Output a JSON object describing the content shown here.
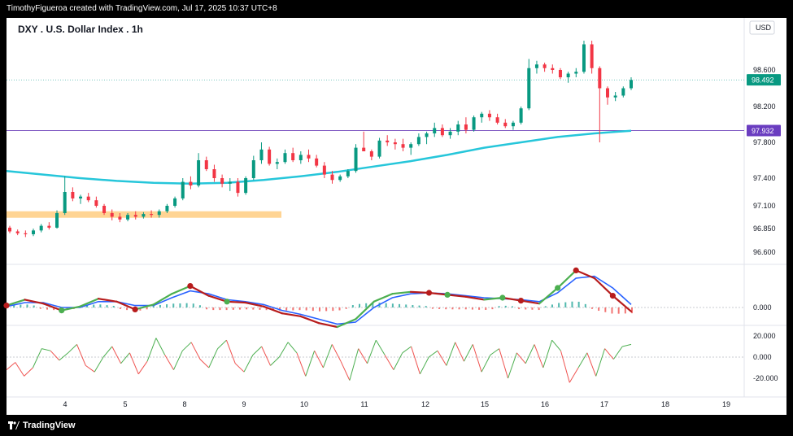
{
  "header": {
    "credit": "TimothyFigueroa created with TradingView.com, Jul 17, 2025 10:37 UTC+8"
  },
  "footer": {
    "brand": "TradingView"
  },
  "chart_data": {
    "type": "candlestick",
    "title": "DXY . U.S. Dollar Index . 1h",
    "currency": "USD",
    "price_axis_ticks": [
      "98.600",
      "98.200",
      "97.800",
      "97.400",
      "97.100",
      "96.850",
      "96.600"
    ],
    "price_axis_values": [
      98.6,
      98.2,
      97.8,
      97.4,
      97.1,
      96.85,
      96.6
    ],
    "last_price_label": "98.492",
    "last_price": 98.492,
    "horizontal_line_label": "97.932",
    "horizontal_line_value": 97.932,
    "support_zone": {
      "from": 96.97,
      "to": 97.04
    },
    "x_tick_labels": [
      "4",
      "5",
      "8",
      "9",
      "10",
      "11",
      "12",
      "15",
      "16",
      "17",
      "18",
      "19"
    ],
    "candles": [
      {
        "o": 96.86,
        "h": 96.88,
        "l": 96.8,
        "c": 96.82
      },
      {
        "o": 96.82,
        "h": 96.84,
        "l": 96.78,
        "c": 96.8
      },
      {
        "o": 96.8,
        "h": 96.83,
        "l": 96.76,
        "c": 96.79
      },
      {
        "o": 96.79,
        "h": 96.85,
        "l": 96.77,
        "c": 96.83
      },
      {
        "o": 96.83,
        "h": 96.9,
        "l": 96.81,
        "c": 96.88
      },
      {
        "o": 96.88,
        "h": 96.92,
        "l": 96.84,
        "c": 96.86
      },
      {
        "o": 96.86,
        "h": 97.05,
        "l": 96.85,
        "c": 97.02
      },
      {
        "o": 97.02,
        "h": 97.42,
        "l": 97.0,
        "c": 97.25
      },
      {
        "o": 97.25,
        "h": 97.3,
        "l": 97.15,
        "c": 97.18
      },
      {
        "o": 97.18,
        "h": 97.22,
        "l": 97.12,
        "c": 97.2
      },
      {
        "o": 97.2,
        "h": 97.24,
        "l": 97.14,
        "c": 97.16
      },
      {
        "o": 97.16,
        "h": 97.2,
        "l": 97.08,
        "c": 97.1
      },
      {
        "o": 97.1,
        "h": 97.12,
        "l": 97.0,
        "c": 97.02
      },
      {
        "o": 97.02,
        "h": 97.06,
        "l": 96.94,
        "c": 96.98
      },
      {
        "o": 96.98,
        "h": 97.02,
        "l": 96.92,
        "c": 96.95
      },
      {
        "o": 96.95,
        "h": 97.02,
        "l": 96.93,
        "c": 97.0
      },
      {
        "o": 97.0,
        "h": 97.04,
        "l": 96.95,
        "c": 96.98
      },
      {
        "o": 96.98,
        "h": 97.03,
        "l": 96.96,
        "c": 97.01
      },
      {
        "o": 97.01,
        "h": 97.05,
        "l": 96.97,
        "c": 97.0
      },
      {
        "o": 97.0,
        "h": 97.06,
        "l": 96.97,
        "c": 97.04
      },
      {
        "o": 97.04,
        "h": 97.12,
        "l": 97.02,
        "c": 97.1
      },
      {
        "o": 97.1,
        "h": 97.2,
        "l": 97.08,
        "c": 97.18
      },
      {
        "o": 97.18,
        "h": 97.4,
        "l": 97.16,
        "c": 97.36
      },
      {
        "o": 97.36,
        "h": 97.42,
        "l": 97.28,
        "c": 97.32
      },
      {
        "o": 97.32,
        "h": 97.68,
        "l": 97.3,
        "c": 97.6
      },
      {
        "o": 97.6,
        "h": 97.64,
        "l": 97.48,
        "c": 97.5
      },
      {
        "o": 97.5,
        "h": 97.55,
        "l": 97.36,
        "c": 97.4
      },
      {
        "o": 97.4,
        "h": 97.44,
        "l": 97.3,
        "c": 97.34
      },
      {
        "o": 97.34,
        "h": 97.4,
        "l": 97.26,
        "c": 97.36
      },
      {
        "o": 97.36,
        "h": 97.4,
        "l": 97.2,
        "c": 97.24
      },
      {
        "o": 97.24,
        "h": 97.42,
        "l": 97.22,
        "c": 97.4
      },
      {
        "o": 97.4,
        "h": 97.65,
        "l": 97.38,
        "c": 97.6
      },
      {
        "o": 97.6,
        "h": 97.8,
        "l": 97.56,
        "c": 97.72
      },
      {
        "o": 97.72,
        "h": 97.75,
        "l": 97.54,
        "c": 97.56
      },
      {
        "o": 97.56,
        "h": 97.62,
        "l": 97.5,
        "c": 97.58
      },
      {
        "o": 97.58,
        "h": 97.72,
        "l": 97.56,
        "c": 97.68
      },
      {
        "o": 97.68,
        "h": 97.74,
        "l": 97.58,
        "c": 97.6
      },
      {
        "o": 97.6,
        "h": 97.7,
        "l": 97.56,
        "c": 97.66
      },
      {
        "o": 97.66,
        "h": 97.72,
        "l": 97.58,
        "c": 97.62
      },
      {
        "o": 97.62,
        "h": 97.66,
        "l": 97.52,
        "c": 97.54
      },
      {
        "o": 97.54,
        "h": 97.58,
        "l": 97.4,
        "c": 97.44
      },
      {
        "o": 97.44,
        "h": 97.48,
        "l": 97.34,
        "c": 97.38
      },
      {
        "o": 97.38,
        "h": 97.44,
        "l": 97.36,
        "c": 97.42
      },
      {
        "o": 97.42,
        "h": 97.5,
        "l": 97.4,
        "c": 97.48
      },
      {
        "o": 97.48,
        "h": 97.78,
        "l": 97.46,
        "c": 97.74
      },
      {
        "o": 97.74,
        "h": 97.92,
        "l": 97.7,
        "c": 97.7
      },
      {
        "o": 97.7,
        "h": 97.72,
        "l": 97.6,
        "c": 97.64
      },
      {
        "o": 97.64,
        "h": 97.85,
        "l": 97.62,
        "c": 97.82
      },
      {
        "o": 97.82,
        "h": 97.88,
        "l": 97.76,
        "c": 97.8
      },
      {
        "o": 97.8,
        "h": 97.84,
        "l": 97.72,
        "c": 97.78
      },
      {
        "o": 97.78,
        "h": 97.84,
        "l": 97.7,
        "c": 97.74
      },
      {
        "o": 97.74,
        "h": 97.8,
        "l": 97.66,
        "c": 97.78
      },
      {
        "o": 97.78,
        "h": 97.9,
        "l": 97.76,
        "c": 97.86
      },
      {
        "o": 97.86,
        "h": 97.92,
        "l": 97.78,
        "c": 97.9
      },
      {
        "o": 97.9,
        "h": 98.02,
        "l": 97.86,
        "c": 97.96
      },
      {
        "o": 97.96,
        "h": 98.0,
        "l": 97.86,
        "c": 97.88
      },
      {
        "o": 97.88,
        "h": 97.96,
        "l": 97.84,
        "c": 97.92
      },
      {
        "o": 97.92,
        "h": 98.04,
        "l": 97.88,
        "c": 98.0
      },
      {
        "o": 98.0,
        "h": 98.08,
        "l": 97.9,
        "c": 97.94
      },
      {
        "o": 97.94,
        "h": 98.1,
        "l": 97.92,
        "c": 98.08
      },
      {
        "o": 98.08,
        "h": 98.14,
        "l": 98.02,
        "c": 98.12
      },
      {
        "o": 98.12,
        "h": 98.16,
        "l": 98.04,
        "c": 98.08
      },
      {
        "o": 98.08,
        "h": 98.12,
        "l": 98.0,
        "c": 98.02
      },
      {
        "o": 98.02,
        "h": 98.06,
        "l": 97.96,
        "c": 97.98
      },
      {
        "o": 97.98,
        "h": 98.04,
        "l": 97.94,
        "c": 98.02
      },
      {
        "o": 98.02,
        "h": 98.2,
        "l": 98.0,
        "c": 98.18
      },
      {
        "o": 98.18,
        "h": 98.72,
        "l": 98.16,
        "c": 98.62
      },
      {
        "o": 98.62,
        "h": 98.7,
        "l": 98.56,
        "c": 98.66
      },
      {
        "o": 98.66,
        "h": 98.68,
        "l": 98.58,
        "c": 98.62
      },
      {
        "o": 98.62,
        "h": 98.66,
        "l": 98.56,
        "c": 98.6
      },
      {
        "o": 98.6,
        "h": 98.62,
        "l": 98.5,
        "c": 98.52
      },
      {
        "o": 98.52,
        "h": 98.58,
        "l": 98.46,
        "c": 98.56
      },
      {
        "o": 98.56,
        "h": 98.62,
        "l": 98.52,
        "c": 98.58
      },
      {
        "o": 98.58,
        "h": 98.92,
        "l": 98.56,
        "c": 98.88
      },
      {
        "o": 98.88,
        "h": 98.92,
        "l": 98.56,
        "c": 98.62
      },
      {
        "o": 98.62,
        "h": 98.64,
        "l": 97.8,
        "c": 98.4
      },
      {
        "o": 98.4,
        "h": 98.42,
        "l": 98.22,
        "c": 98.3
      },
      {
        "o": 98.3,
        "h": 98.36,
        "l": 98.26,
        "c": 98.32
      },
      {
        "o": 98.32,
        "h": 98.42,
        "l": 98.3,
        "c": 98.4
      },
      {
        "o": 98.4,
        "h": 98.52,
        "l": 98.38,
        "c": 98.49
      }
    ],
    "ma_line": [
      97.48,
      97.44,
      97.4,
      97.37,
      97.35,
      97.34,
      97.35,
      97.38,
      97.42,
      97.47,
      97.53,
      97.59,
      97.66,
      97.74,
      97.8,
      97.86,
      97.9,
      97.93
    ],
    "oscillator": {
      "zero_label": "0.000",
      "fast": [
        0.2,
        0.8,
        0.4,
        -0.3,
        0.1,
        0.9,
        0.6,
        -0.2,
        0.3,
        1.4,
        2.2,
        1.2,
        0.6,
        0.5,
        0.1,
        -0.6,
        -0.9,
        -1.6,
        -2.0,
        -1.2,
        0.6,
        1.4,
        1.6,
        1.5,
        1.3,
        1.1,
        0.8,
        1.0,
        0.7,
        0.4,
        2.0,
        3.8,
        3.0,
        1.2,
        -0.4
      ],
      "slow": [
        0.1,
        0.5,
        0.5,
        0.0,
        0.0,
        0.6,
        0.6,
        0.2,
        0.2,
        1.0,
        1.7,
        1.4,
        0.8,
        0.6,
        0.3,
        -0.3,
        -0.7,
        -1.2,
        -1.7,
        -1.5,
        0.0,
        1.0,
        1.4,
        1.5,
        1.4,
        1.2,
        1.0,
        0.9,
        0.8,
        0.6,
        1.5,
        3.0,
        3.2,
        2.0,
        0.3
      ],
      "green_dots": [
        3,
        12,
        24,
        27,
        30
      ],
      "red_dots": [
        0,
        7,
        10,
        23,
        28,
        31,
        33
      ]
    },
    "momentum": {
      "tick_labels": [
        "20.000",
        "0.000",
        "-20.000"
      ],
      "tick_values": [
        20,
        0,
        -20
      ],
      "values": [
        -12,
        -5,
        -18,
        -10,
        8,
        6,
        -3,
        4,
        12,
        -8,
        -14,
        0,
        10,
        -6,
        4,
        -16,
        -4,
        18,
        2,
        -12,
        6,
        14,
        -2,
        -10,
        8,
        16,
        -6,
        -14,
        2,
        10,
        -8,
        0,
        14,
        4,
        -18,
        6,
        -10,
        12,
        -4,
        -22,
        8,
        -6,
        16,
        2,
        -12,
        4,
        10,
        -16,
        0,
        6,
        -8,
        14,
        -4,
        12,
        -14,
        2,
        8,
        -20,
        4,
        -6,
        12,
        -10,
        16,
        6,
        -24,
        -10,
        4,
        -18,
        8,
        -2,
        10,
        12
      ]
    }
  }
}
